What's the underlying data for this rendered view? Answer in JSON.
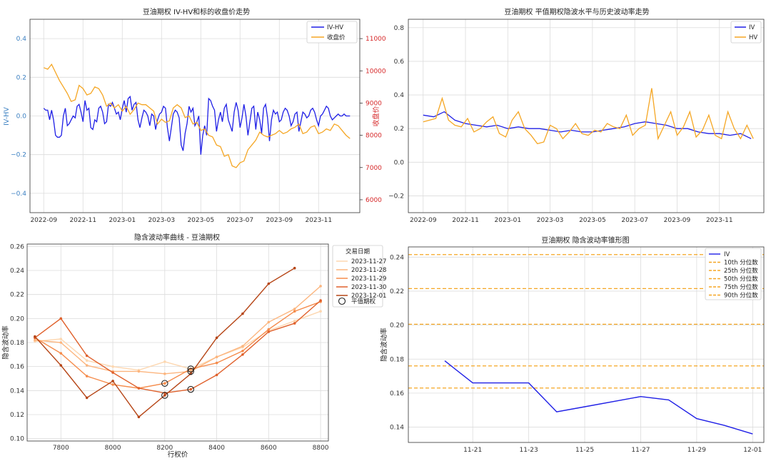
{
  "chart_data": [
    {
      "type": "line",
      "title": "豆油期权 IV-HV和标的收盘价走势",
      "ylabel_left": "IV-HV",
      "ylabel_right": "收盘价",
      "xticks": [
        "2022-09",
        "2022-11",
        "2023-01",
        "2023-03",
        "2023-05",
        "2023-07",
        "2023-09",
        "2023-11"
      ],
      "yticks_left": [
        "−0.4",
        "−0.2",
        "0.0",
        "0.2",
        "0.4"
      ],
      "yticks_right": [
        "6000",
        "7000",
        "8000",
        "9000",
        "10000",
        "11000"
      ],
      "ylim_left": [
        -0.5,
        0.5
      ],
      "ylim_right": [
        5600,
        11600
      ],
      "legend": [
        "IV-HV",
        "收盘价"
      ],
      "legend_position": "top-right",
      "grid": true,
      "series": [
        {
          "name": "IV-HV",
          "axis": "left",
          "color": "#1f1fe6",
          "x_months": [
            0,
            0.1,
            0.2,
            0.3,
            0.4,
            0.5,
            0.6,
            0.7,
            0.8,
            0.9,
            1,
            1.1,
            1.2,
            1.3,
            1.4,
            1.5,
            1.6,
            1.7,
            1.8,
            1.9,
            2,
            2.1,
            2.2,
            2.3,
            2.4,
            2.5,
            2.6,
            2.7,
            2.8,
            2.9,
            3,
            3.1,
            3.2,
            3.3,
            3.4,
            3.5,
            3.6,
            3.7,
            3.8,
            3.9,
            4,
            4.1,
            4.2,
            4.3,
            4.4,
            4.5,
            4.6,
            4.7,
            4.8,
            4.9,
            5,
            5.1,
            5.2,
            5.3,
            5.4,
            5.5,
            5.6,
            5.7,
            5.8,
            5.9,
            6,
            6.1,
            6.2,
            6.3,
            6.4,
            6.5,
            6.6,
            6.7,
            6.8,
            6.9,
            7,
            7.1,
            7.2,
            7.3,
            7.4,
            7.5,
            7.6,
            7.7,
            7.8,
            7.9,
            8,
            8.1,
            8.2,
            8.3,
            8.4,
            8.5,
            8.6,
            8.7,
            8.8,
            8.9,
            9,
            9.1,
            9.2,
            9.3,
            9.4,
            9.5,
            9.6,
            9.7,
            9.8,
            9.9,
            10,
            10.1,
            10.2,
            10.3,
            10.4,
            10.5,
            10.6,
            10.7,
            10.8,
            10.9,
            11,
            11.1,
            11.2,
            11.3,
            11.4,
            11.5,
            11.6,
            11.7,
            11.8,
            11.9,
            12,
            12.1,
            12.2,
            12.3,
            12.4,
            12.5,
            12.6,
            12.7,
            12.8,
            12.9,
            13,
            13.1,
            13.2,
            13.3,
            13.4,
            13.5,
            13.6,
            13.7,
            13.8,
            13.9,
            14,
            14.1,
            14.2,
            14.3,
            14.4,
            14.5,
            14.6,
            14.7,
            14.8,
            14.9,
            15,
            15.1,
            15.2,
            15.3,
            15.4,
            15.5,
            15.6
          ],
          "values": [
            0.04,
            0.03,
            0.03,
            -0.02,
            0.03,
            -0.02,
            -0.1,
            -0.11,
            -0.11,
            -0.1,
            0.0,
            0.04,
            -0.05,
            -0.04,
            -0.02,
            0.0,
            -0.01,
            0.05,
            0.06,
            0.02,
            -0.03,
            0.08,
            0.03,
            0.04,
            -0.06,
            -0.07,
            -0.02,
            -0.03,
            0.04,
            0.05,
            0.02,
            -0.04,
            -0.03,
            0.06,
            0.05,
            0.07,
            0.04,
            0.01,
            0.02,
            -0.02,
            0.04,
            0.08,
            0.02,
            0.09,
            0.1,
            0.03,
            0.06,
            0.07,
            -0.02,
            -0.06,
            -0.01,
            0.03,
            0.02,
            0.0,
            -0.05,
            0.01,
            0.0,
            -0.07,
            -0.02,
            0.01,
            0.02,
            0.05,
            0.04,
            -0.06,
            -0.13,
            -0.06,
            0.01,
            0.03,
            0.02,
            -0.01,
            -0.15,
            -0.18,
            -0.09,
            -0.04,
            0.05,
            0.02,
            0.04,
            -0.05,
            -0.03,
            0.0,
            -0.2,
            -0.1,
            -0.05,
            -0.1,
            0.09,
            0.08,
            0.05,
            0.03,
            -0.08,
            -0.02,
            0.02,
            -0.03,
            0.04,
            0.06,
            -0.02,
            -0.05,
            -0.08,
            0.02,
            0.07,
            0.03,
            -0.06,
            -0.01,
            0.06,
            0.0,
            -0.1,
            -0.03,
            0.04,
            0.05,
            -0.07,
            0.02,
            -0.02,
            -0.09,
            0.04,
            0.06,
            -0.01,
            -0.13,
            -0.02,
            0.03,
            0.01,
            0.02,
            -0.03,
            -0.02,
            0.02,
            0.04,
            0.03,
            0.0,
            -0.05,
            -0.03,
            0.01,
            0.02,
            -0.08,
            -0.03,
            0.02,
            0.01,
            -0.01,
            0.0,
            0.03,
            0.04,
            0.02,
            -0.02,
            -0.05,
            0.0,
            0.01,
            0.03,
            0.05,
            0.04,
            0.0,
            -0.02,
            -0.01,
            0.0,
            0.01,
            0.0,
            0.0,
            0.01,
            0.0,
            0.0,
            0.0
          ]
        },
        {
          "name": "收盘价",
          "axis": "right",
          "color": "#f5a623",
          "x_months": [
            0,
            0.2,
            0.4,
            0.6,
            0.8,
            1,
            1.2,
            1.4,
            1.6,
            1.8,
            2,
            2.2,
            2.4,
            2.6,
            2.8,
            3,
            3.2,
            3.4,
            3.6,
            3.8,
            4,
            4.2,
            4.4,
            4.6,
            4.8,
            5,
            5.2,
            5.4,
            5.6,
            5.8,
            6,
            6.2,
            6.4,
            6.6,
            6.8,
            7,
            7.2,
            7.4,
            7.6,
            7.8,
            8,
            8.2,
            8.4,
            8.6,
            8.8,
            9,
            9.2,
            9.4,
            9.6,
            9.8,
            10,
            10.2,
            10.4,
            10.6,
            10.8,
            11,
            11.2,
            11.4,
            11.6,
            11.8,
            12,
            12.2,
            12.4,
            12.6,
            12.8,
            13,
            13.2,
            13.4,
            13.6,
            13.8,
            14,
            14.2,
            14.4,
            14.6,
            14.8,
            15,
            15.2,
            15.4,
            15.6
          ],
          "values": [
            10100,
            10050,
            10200,
            9950,
            9700,
            9500,
            9300,
            9050,
            9100,
            9550,
            9450,
            9250,
            9300,
            9500,
            9450,
            9250,
            8900,
            9000,
            8850,
            8950,
            8750,
            8900,
            8650,
            8800,
            9000,
            8950,
            8950,
            8850,
            8750,
            8350,
            8500,
            8400,
            8450,
            8850,
            8950,
            8850,
            8550,
            8600,
            8350,
            8400,
            8150,
            8200,
            8000,
            7950,
            7700,
            7650,
            7350,
            7400,
            7050,
            7000,
            7150,
            7200,
            7550,
            7700,
            7850,
            8100,
            8000,
            7950,
            8000,
            8050,
            8150,
            8050,
            8100,
            8200,
            8250,
            8350,
            8050,
            8100,
            8250,
            8300,
            8050,
            8100,
            8200,
            8150,
            8350,
            8300,
            8150,
            8000,
            7900
          ]
        }
      ]
    },
    {
      "type": "line",
      "title": "豆油期权 平值期权隐波水平与历史波动率走势",
      "xticks": [
        "2022-09",
        "2022-11",
        "2023-01",
        "2023-03",
        "2023-05",
        "2023-07",
        "2023-09",
        "2023-11"
      ],
      "yticks": [
        "−0.2",
        "0.0",
        "0.2",
        "0.4",
        "0.6",
        "0.8"
      ],
      "ylim": [
        -0.3,
        0.85
      ],
      "legend": [
        "IV",
        "HV"
      ],
      "legend_position": "top-right",
      "grid": true,
      "series": [
        {
          "name": "IV",
          "color": "#1f1fe6",
          "x_months": [
            0,
            0.5,
            1,
            1.5,
            2,
            2.5,
            3,
            3.5,
            4,
            4.5,
            5,
            5.5,
            6,
            6.5,
            7,
            7.5,
            8,
            8.5,
            9,
            9.5,
            10,
            10.5,
            11,
            11.5,
            12,
            12.5,
            13,
            13.5,
            14,
            14.5,
            15,
            15.5
          ],
          "values": [
            0.28,
            0.27,
            0.3,
            0.25,
            0.23,
            0.22,
            0.21,
            0.22,
            0.2,
            0.21,
            0.2,
            0.2,
            0.19,
            0.18,
            0.19,
            0.18,
            0.18,
            0.19,
            0.2,
            0.21,
            0.23,
            0.24,
            0.23,
            0.22,
            0.2,
            0.2,
            0.18,
            0.17,
            0.17,
            0.16,
            0.17,
            0.14
          ]
        },
        {
          "name": "HV",
          "color": "#f5a623",
          "x_months": [
            0,
            0.3,
            0.6,
            0.9,
            1.2,
            1.5,
            1.8,
            2.1,
            2.4,
            2.7,
            3,
            3.3,
            3.6,
            3.9,
            4.2,
            4.5,
            4.8,
            5.1,
            5.4,
            5.7,
            6,
            6.3,
            6.6,
            6.9,
            7.2,
            7.5,
            7.8,
            8.1,
            8.4,
            8.7,
            9,
            9.3,
            9.6,
            9.9,
            10.2,
            10.5,
            10.8,
            11.1,
            11.4,
            11.7,
            12,
            12.3,
            12.6,
            12.9,
            13.2,
            13.5,
            13.8,
            14.1,
            14.4,
            14.7,
            15,
            15.3,
            15.6
          ],
          "values": [
            0.24,
            0.25,
            0.26,
            0.38,
            0.25,
            0.22,
            0.21,
            0.26,
            0.18,
            0.2,
            0.24,
            0.27,
            0.17,
            0.15,
            0.25,
            0.3,
            0.2,
            0.16,
            0.11,
            0.12,
            0.22,
            0.2,
            0.14,
            0.18,
            0.23,
            0.17,
            0.16,
            0.19,
            0.18,
            0.23,
            0.21,
            0.2,
            0.28,
            0.16,
            0.2,
            0.22,
            0.44,
            0.14,
            0.22,
            0.3,
            0.16,
            0.21,
            0.3,
            0.15,
            0.19,
            0.28,
            0.16,
            0.14,
            0.3,
            0.2,
            0.14,
            0.22,
            0.14
          ]
        }
      ]
    },
    {
      "type": "line",
      "title": "隐含波动率曲线 - 豆油期权",
      "xlabel": "行权价",
      "ylabel": "隐含波动率",
      "xlim": [
        7670,
        8830
      ],
      "ylim": [
        0.098,
        0.262
      ],
      "xticks": [
        "7800",
        "8000",
        "8200",
        "8400",
        "8600",
        "8800"
      ],
      "yticks": [
        "0.10",
        "0.12",
        "0.14",
        "0.16",
        "0.18",
        "0.20",
        "0.22",
        "0.24",
        "0.26"
      ],
      "legend_title": "交易日期",
      "legend_atm_label": "平值期权",
      "legend_position": "outside-right",
      "grid": true,
      "series": [
        {
          "name": "2023-11-27",
          "color": "#fdd7b0",
          "x": [
            7700,
            7800,
            7900,
            8000,
            8100,
            8200,
            8300,
            8400,
            8500,
            8600,
            8700,
            8800
          ],
          "values": [
            0.181,
            0.183,
            0.165,
            0.16,
            0.157,
            0.164,
            0.158,
            0.168,
            0.176,
            0.19,
            0.198,
            0.206
          ]
        },
        {
          "name": "2023-11-28",
          "color": "#fcb57e",
          "x": [
            7700,
            7800,
            7900,
            8000,
            8100,
            8200,
            8300,
            8400,
            8500,
            8600,
            8700,
            8800
          ],
          "values": [
            0.182,
            0.18,
            0.161,
            0.156,
            0.156,
            0.154,
            0.156,
            0.168,
            0.177,
            0.197,
            0.208,
            0.227
          ]
        },
        {
          "name": "2023-11-29",
          "color": "#f58c4c",
          "x": [
            7700,
            7800,
            7900,
            8000,
            8100,
            8200,
            8300,
            8400,
            8500,
            8600,
            8700,
            8800
          ],
          "values": [
            0.184,
            0.171,
            0.152,
            0.145,
            0.142,
            0.146,
            0.158,
            0.163,
            0.173,
            0.191,
            0.206,
            0.214
          ]
        },
        {
          "name": "2023-11-30",
          "color": "#e0612c",
          "x": [
            7700,
            7800,
            7900,
            8000,
            8100,
            8200,
            8300,
            8400,
            8500,
            8600,
            8700,
            8800
          ],
          "values": [
            0.184,
            0.2,
            0.169,
            0.155,
            0.142,
            0.138,
            0.141,
            0.153,
            0.17,
            0.189,
            0.196,
            0.215
          ]
        },
        {
          "name": "2023-12-01",
          "color": "#b64516",
          "x": [
            7700,
            7800,
            7900,
            8000,
            8100,
            8200,
            8300,
            8400,
            8500,
            8600,
            8700
          ],
          "values": [
            0.185,
            0.161,
            0.134,
            0.148,
            0.118,
            0.136,
            0.154,
            0.184,
            0.204,
            0.229,
            0.242
          ]
        }
      ],
      "atm_points": [
        {
          "x": 8200,
          "y": 0.146
        },
        {
          "x": 8200,
          "y": 0.136
        },
        {
          "x": 8300,
          "y": 0.141
        },
        {
          "x": 8300,
          "y": 0.156
        },
        {
          "x": 8300,
          "y": 0.158
        }
      ]
    },
    {
      "type": "line",
      "title": "豆油期权 隐含波动率锥形图",
      "ylabel": "隐含波动率",
      "xticks": [
        "11-21",
        "11-23",
        "11-25",
        "11-27",
        "11-29",
        "12-01"
      ],
      "yticks": [
        "0.14",
        "0.16",
        "0.18",
        "0.20",
        "0.22",
        "0.24"
      ],
      "ylim": [
        0.131,
        0.246
      ],
      "legend_position": "top-right",
      "grid": true,
      "series": [
        {
          "name": "IV",
          "color": "#1f1fe6",
          "x_day": [
            0,
            1,
            3,
            4,
            5,
            7,
            8,
            9,
            10,
            11
          ],
          "values": [
            0.179,
            0.166,
            0.166,
            0.149,
            0.152,
            0.158,
            0.156,
            0.145,
            0.141,
            0.136
          ]
        }
      ],
      "quantiles": [
        {
          "name": "10th 分位数",
          "value": 0.163
        },
        {
          "name": "25th 分位数",
          "value": 0.176
        },
        {
          "name": "50th 分位数",
          "value": 0.2005
        },
        {
          "name": "75th 分位数",
          "value": 0.2215
        },
        {
          "name": "90th 分位数",
          "value": 0.2415
        }
      ],
      "quantile_color": "#f5a623"
    }
  ]
}
